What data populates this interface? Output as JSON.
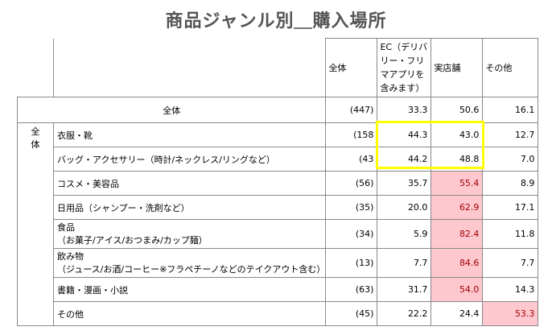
{
  "title": "商品ジャンル別＿購入場所",
  "headers": {
    "all": "全体",
    "ec": [
      "EC（デリバ",
      "リー・フリ",
      "マアプリを",
      "含みます）"
    ],
    "store": "実店舗",
    "other": "その他"
  },
  "total_row": {
    "label": "全体",
    "n": "(447)",
    "ec": "33.3",
    "store": "50.6",
    "other": "16.1"
  },
  "side_label": [
    "全",
    "体"
  ],
  "rows": [
    {
      "label": "衣服・靴",
      "n": "(158",
      "ec": "44.3",
      "store": "43.0",
      "other": "12.7"
    },
    {
      "label": "バッグ・アクセサリー（時計/ネックレス/リングなど）",
      "n": "(43",
      "ec": "44.2",
      "store": "48.8",
      "other": "7.0"
    },
    {
      "label": "コスメ・美容品",
      "n": "(56)",
      "ec": "35.7",
      "store": "55.4",
      "other": "8.9"
    },
    {
      "label": "日用品（シャンプー・洗剤など）",
      "n": "(35)",
      "ec": "20.0",
      "store": "62.9",
      "other": "17.1"
    },
    {
      "label1": "食品",
      "label2": "（お菓子/アイス/おつまみ/カップ麺）",
      "n": "(34)",
      "ec": "5.9",
      "store": "82.4",
      "other": "11.8"
    },
    {
      "label1": "飲み物",
      "label2": "（ジュース/お酒/コーヒー※フラペチーノなどのテイクアウト含む）",
      "n": "(13)",
      "ec": "7.7",
      "store": "84.6",
      "other": "7.7"
    },
    {
      "label": "書籍・漫画・小説",
      "n": "(63)",
      "ec": "31.7",
      "store": "54.0",
      "other": "14.3"
    },
    {
      "label": "その他",
      "n": "(45)",
      "ec": "22.2",
      "store": "24.4",
      "other": "53.3"
    }
  ],
  "colors": {
    "highlight_cell_bg": "#ffc7ce",
    "highlight_cell_text": "#9c0006",
    "focus_box": "#ffff00"
  }
}
